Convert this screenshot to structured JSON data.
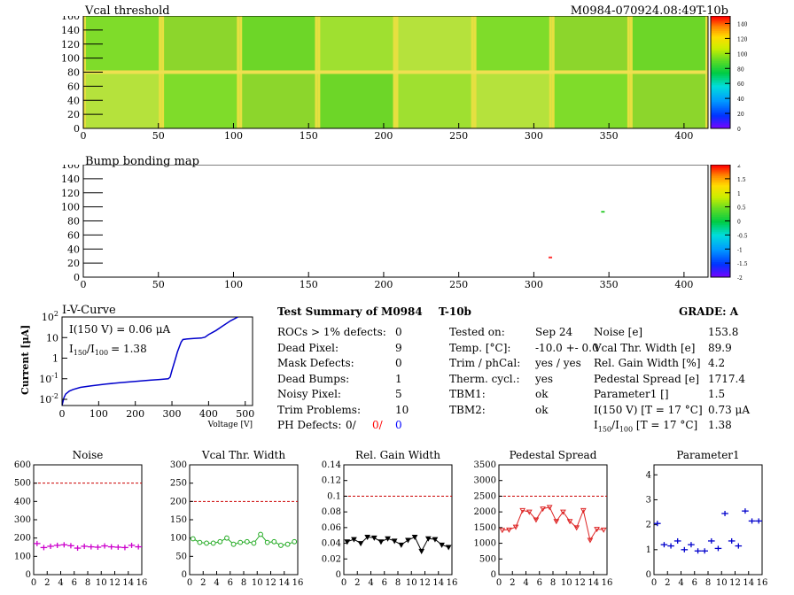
{
  "header": {
    "title": "Vcal threshold",
    "module_id": "M0984-070924.08:49T-10b"
  },
  "map1": {
    "title": "Vcal threshold",
    "x_ticks": [
      "0",
      "50",
      "100",
      "150",
      "200",
      "250",
      "300",
      "350",
      "400"
    ],
    "y_ticks": [
      "0",
      "20",
      "40",
      "60",
      "80",
      "100",
      "120",
      "140",
      "160"
    ],
    "z_ticks": [
      "0",
      "20",
      "40",
      "60",
      "80",
      "100",
      "120",
      "140"
    ],
    "xlim": [
      0,
      416
    ],
    "ylim": [
      0,
      160
    ],
    "zlim": [
      0,
      150
    ]
  },
  "map2": {
    "title": "Bump bonding map",
    "x_ticks": [
      "0",
      "50",
      "100",
      "150",
      "200",
      "250",
      "300",
      "350",
      "400"
    ],
    "y_ticks": [
      "0",
      "20",
      "40",
      "60",
      "80",
      "100",
      "120",
      "140",
      "160"
    ],
    "z_ticks": [
      "2",
      "1.5",
      "1",
      "0.5",
      "0",
      "-0.5",
      "-1",
      "-1.5",
      "-2"
    ],
    "points": [
      {
        "x": 346,
        "y": 93,
        "color": "#33cc33"
      },
      {
        "x": 311,
        "y": 28,
        "color": "#ff3333"
      }
    ]
  },
  "iv": {
    "title": "I-V-Curve",
    "ylabel": "Current [μA]",
    "xlabel": "Voltage [V]",
    "i150": "I(150 V) = 0.06 μA",
    "ratio_label": "I",
    "ratio_sub1": "150",
    "ratio_sub2": "100",
    "ratio_value": "=  1.38",
    "x_ticks": [
      "0",
      "100",
      "200",
      "300",
      "400",
      "500"
    ],
    "y_ticks": [
      {
        "base": "10",
        "exp": "-2"
      },
      {
        "base": "10",
        "exp": "-1"
      },
      {
        "base": "1",
        "exp": ""
      },
      {
        "base": "10",
        "exp": ""
      },
      {
        "base": "10",
        "exp": "2"
      }
    ]
  },
  "summary": {
    "title": "Test Summary of M0984",
    "subtitle": "T-10b",
    "grade": "GRADE:  A",
    "left": [
      {
        "label": "ROCs > 1% defects:",
        "value": "0"
      },
      {
        "label": "Dead Pixel:",
        "value": "9"
      },
      {
        "label": "Mask Defects:",
        "value": "0"
      },
      {
        "label": "Dead Bumps:",
        "value": "1"
      },
      {
        "label": "Noisy Pixel:",
        "value": "5"
      },
      {
        "label": "Trim Problems:",
        "value": "10"
      }
    ],
    "ph_label": "PH Defects:",
    "ph_values": [
      "0/",
      "0/",
      "0"
    ],
    "ph_colors": [
      "#000000",
      "#ff0000",
      "#0000ff"
    ],
    "middle": [
      {
        "label": "Tested on:",
        "value": "Sep 24"
      },
      {
        "label": "Temp. [°C]:",
        "value": "-10.0 +- 0.0"
      },
      {
        "label": "Trim / phCal:",
        "value": "yes / yes"
      },
      {
        "label": "Therm. cycl.:",
        "value": "yes"
      },
      {
        "label": "TBM1:",
        "value": "ok"
      },
      {
        "label": "TBM2:",
        "value": "ok"
      }
    ],
    "right": [
      {
        "label": "Noise [e]",
        "value": "153.8"
      },
      {
        "label": "Vcal Thr. Width [e]",
        "value": "89.9"
      },
      {
        "label": "Rel. Gain Width [%]",
        "value": "4.2"
      },
      {
        "label": "Pedestal Spread [e]",
        "value": "1717.4"
      },
      {
        "label": "Parameter1 []",
        "value": "1.5"
      },
      {
        "label": "I(150 V) [T = 17 °C]",
        "value": "0.73 μA"
      }
    ],
    "ratio_row": {
      "label": "I",
      "sub1": "150",
      "sub2": "100",
      "cond": "[T = 17 °C]",
      "value": "1.38"
    }
  },
  "chart_data": [
    {
      "type": "heatmap",
      "title": "Vcal threshold",
      "xlim": [
        0,
        416
      ],
      "ylim": [
        0,
        160
      ],
      "zlim": [
        0,
        150
      ],
      "colorbar_ticks": [
        0,
        20,
        40,
        60,
        80,
        100,
        120,
        140
      ]
    },
    {
      "type": "scatter",
      "title": "Bump bonding map",
      "xlim": [
        0,
        416
      ],
      "ylim": [
        0,
        160
      ],
      "zlim": [
        -2,
        2
      ],
      "x": [
        346,
        311
      ],
      "y": [
        93,
        28
      ]
    },
    {
      "type": "line",
      "title": "I-V-Curve",
      "xlabel": "Voltage [V]",
      "ylabel": "Current [μA]",
      "xlim": [
        0,
        520
      ],
      "ylim": [
        0.005,
        100
      ],
      "yscale": "log",
      "x": [
        0,
        5,
        10,
        20,
        30,
        50,
        80,
        120,
        160,
        200,
        240,
        270,
        290,
        295,
        300,
        305,
        310,
        315,
        320,
        325,
        330,
        340,
        360,
        380,
        390,
        400,
        420,
        440,
        460,
        480
      ],
      "y": [
        0.004,
        0.012,
        0.018,
        0.025,
        0.03,
        0.038,
        0.045,
        0.055,
        0.065,
        0.075,
        0.085,
        0.093,
        0.1,
        0.12,
        0.25,
        0.5,
        1.0,
        2.0,
        3.5,
        6.0,
        8.0,
        8.5,
        9.0,
        9.5,
        10.5,
        14,
        22,
        38,
        65,
        100
      ]
    },
    {
      "type": "scatter",
      "title": "Noise",
      "xlim": [
        0,
        16
      ],
      "ylim": [
        0,
        600
      ],
      "x_ticks": [
        "0",
        "2",
        "4",
        "6",
        "8",
        "10",
        "12",
        "14",
        "16"
      ],
      "y_ticks": [
        "0",
        "100",
        "200",
        "300",
        "400",
        "500",
        "600"
      ],
      "threshold": 500,
      "color": "#cc00cc",
      "marker": "plus",
      "x": [
        0.5,
        1.5,
        2.5,
        3.5,
        4.5,
        5.5,
        6.5,
        7.5,
        8.5,
        9.5,
        10.5,
        11.5,
        12.5,
        13.5,
        14.5,
        15.5
      ],
      "values": [
        170,
        148,
        155,
        160,
        163,
        158,
        145,
        155,
        152,
        150,
        157,
        152,
        150,
        148,
        160,
        152
      ]
    },
    {
      "type": "line",
      "title": "Vcal Thr. Width",
      "xlim": [
        0,
        16
      ],
      "ylim": [
        0,
        300
      ],
      "x_ticks": [
        "0",
        "2",
        "4",
        "6",
        "8",
        "10",
        "12",
        "14",
        "16"
      ],
      "y_ticks": [
        "0",
        "50",
        "100",
        "150",
        "200",
        "250",
        "300"
      ],
      "threshold": 200,
      "color": "#22aa22",
      "marker": "circle",
      "x": [
        0.5,
        1.5,
        2.5,
        3.5,
        4.5,
        5.5,
        6.5,
        7.5,
        8.5,
        9.5,
        10.5,
        11.5,
        12.5,
        13.5,
        14.5,
        15.5
      ],
      "values": [
        98,
        88,
        86,
        86,
        90,
        100,
        83,
        88,
        90,
        86,
        110,
        88,
        90,
        80,
        83,
        90
      ]
    },
    {
      "type": "line",
      "title": "Rel. Gain Width",
      "xlim": [
        0,
        16
      ],
      "ylim": [
        0,
        0.14
      ],
      "x_ticks": [
        "0",
        "2",
        "4",
        "6",
        "8",
        "10",
        "12",
        "14",
        "16"
      ],
      "y_ticks": [
        "0",
        "0.02",
        "0.04",
        "0.06",
        "0.08",
        "0.1",
        "0.12",
        "0.14"
      ],
      "threshold": 0.1,
      "color": "#000000",
      "marker": "triangle",
      "x": [
        0.5,
        1.5,
        2.5,
        3.5,
        4.5,
        5.5,
        6.5,
        7.5,
        8.5,
        9.5,
        10.5,
        11.5,
        12.5,
        13.5,
        14.5,
        15.5
      ],
      "values": [
        0.042,
        0.045,
        0.04,
        0.048,
        0.047,
        0.042,
        0.046,
        0.043,
        0.038,
        0.044,
        0.048,
        0.03,
        0.046,
        0.045,
        0.038,
        0.035
      ]
    },
    {
      "type": "line",
      "title": "Pedestal Spread",
      "xlim": [
        0,
        16
      ],
      "ylim": [
        0,
        3500
      ],
      "x_ticks": [
        "0",
        "2",
        "4",
        "6",
        "8",
        "10",
        "12",
        "14",
        "16"
      ],
      "y_ticks": [
        "0",
        "500",
        "1000",
        "1500",
        "2000",
        "2500",
        "3000",
        "3500"
      ],
      "threshold": 2500,
      "color": "#dd2222",
      "marker": "triangle",
      "x": [
        0.5,
        1.5,
        2.5,
        3.5,
        4.5,
        5.5,
        6.5,
        7.5,
        8.5,
        9.5,
        10.5,
        11.5,
        12.5,
        13.5,
        14.5,
        15.5
      ],
      "values": [
        1420,
        1430,
        1520,
        2050,
        2000,
        1750,
        2100,
        2150,
        1700,
        2000,
        1700,
        1500,
        2050,
        1100,
        1450,
        1430
      ]
    },
    {
      "type": "scatter",
      "title": "Parameter1",
      "xlim": [
        0,
        16
      ],
      "ylim": [
        0,
        4.4
      ],
      "x_ticks": [
        "0",
        "2",
        "4",
        "6",
        "8",
        "10",
        "12",
        "14",
        "16"
      ],
      "y_ticks": [
        "0",
        "1",
        "2",
        "3",
        "4"
      ],
      "color": "#0000cc",
      "marker": "plus",
      "x": [
        0.5,
        1.5,
        2.5,
        3.5,
        4.5,
        5.5,
        6.5,
        7.5,
        8.5,
        9.5,
        10.5,
        11.5,
        12.5,
        13.5,
        14.5,
        15.5
      ],
      "values": [
        2.05,
        1.2,
        1.15,
        1.35,
        1.0,
        1.2,
        0.95,
        0.95,
        1.35,
        1.05,
        2.45,
        1.35,
        1.15,
        2.55,
        2.15,
        2.15
      ]
    }
  ]
}
